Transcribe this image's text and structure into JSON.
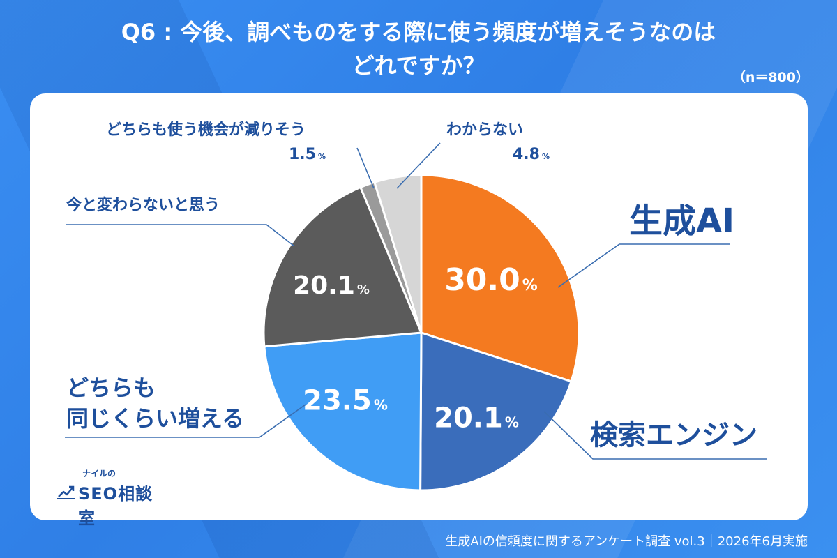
{
  "header": {
    "title_line1": "Q6 : 今後、調べものをする際に使う頻度が増えそうなのは",
    "title_line2": "どれですか？",
    "sample_size": "（n＝800）"
  },
  "chart_data": {
    "type": "pie",
    "start_angle": "12 o'clock",
    "direction": "clockwise",
    "unit": "%",
    "slices": [
      {
        "label": "生成AI",
        "value": 30.0,
        "value_text": "30.0",
        "color": "#f47a20"
      },
      {
        "label": "検索エンジン",
        "value": 20.1,
        "value_text": "20.1",
        "color": "#3a6dbb"
      },
      {
        "label": "どちらも\n同じくらい増える",
        "value": 23.5,
        "value_text": "23.5",
        "color": "#409df5"
      },
      {
        "label": "今と変わらないと思う",
        "value": 20.1,
        "value_text": "20.1",
        "color": "#5b5b5b"
      },
      {
        "label": "どちらも使う機会が減りそう",
        "value": 1.5,
        "value_text": "1.5",
        "color": "#9a9a9a"
      },
      {
        "label": "わからない",
        "value": 4.8,
        "value_text": "4.8",
        "color": "#d6d6d6"
      }
    ]
  },
  "logo": {
    "small_text": "ナイルの",
    "main_text": "SEO相談室",
    "icon": "trend-chart-icon"
  },
  "footer": {
    "text": "生成AIの信頼度に関するアンケート調査 vol.3｜2026年6月実施"
  },
  "colors": {
    "background": "#3a8ef2",
    "label_text": "#1e4f9c",
    "leader_line": "#3a6db0"
  }
}
